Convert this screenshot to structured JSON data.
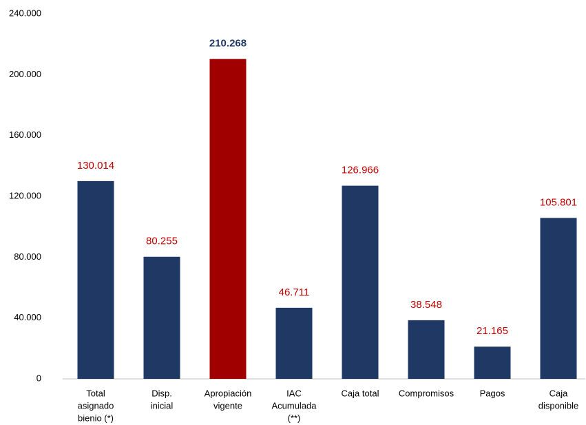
{
  "chart_data": {
    "type": "bar",
    "categories": [
      [
        "Total",
        "asignado",
        "bienio (*)"
      ],
      [
        "Disp.",
        "inicial"
      ],
      [
        "Apropiación",
        "vigente"
      ],
      [
        "IAC",
        "Acumulada",
        "(**)"
      ],
      [
        "Caja total"
      ],
      [
        "Compromisos"
      ],
      [
        "Pagos"
      ],
      [
        "Caja",
        "disponible"
      ]
    ],
    "values": [
      130014,
      80255,
      210268,
      46711,
      126966,
      38548,
      21165,
      105801
    ],
    "value_labels": [
      "130.014",
      "80.255",
      "210.268",
      "46.711",
      "126.966",
      "38.548",
      "21.165",
      "105.801"
    ],
    "colors": [
      "#203864",
      "#203864",
      "#a00000",
      "#203864",
      "#203864",
      "#203864",
      "#203864",
      "#203864"
    ],
    "label_colors": [
      "#c00000",
      "#c00000",
      "#1f3864",
      "#c00000",
      "#c00000",
      "#c00000",
      "#c00000",
      "#c00000"
    ],
    "ylim": [
      0,
      240000
    ],
    "yticks": [
      0,
      {
        "value": 40000,
        "label": "40.000"
      },
      {
        "value": 80000,
        "label": "80.000"
      },
      {
        "value": 120000,
        "label": "120.000"
      },
      {
        "value": 160000,
        "label": "160.000"
      },
      {
        "value": 200000,
        "label": "200.000"
      },
      {
        "value": 240000,
        "label": "240.000"
      }
    ],
    "grid": false
  }
}
